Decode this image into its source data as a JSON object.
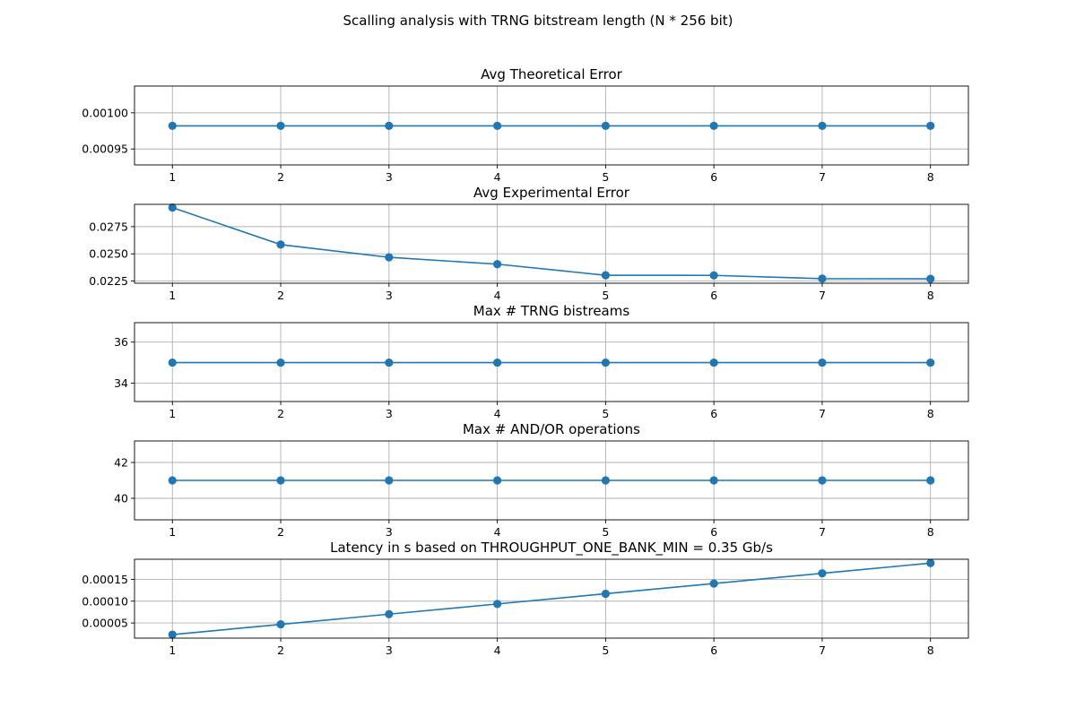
{
  "figure": {
    "title": "Scalling analysis with TRNG bitstream length (N * 256 bit)"
  },
  "style": {
    "series_color": "#1f77b4",
    "grid": true,
    "marker": "circle"
  },
  "chart_data": [
    {
      "type": "line",
      "title": "Avg Theoretical Error",
      "x": [
        1,
        2,
        3,
        4,
        5,
        6,
        7,
        8
      ],
      "values": [
        0.000982,
        0.000982,
        0.000982,
        0.000982,
        0.000982,
        0.000982,
        0.000982,
        0.000982
      ],
      "ylim": [
        0.000928,
        0.001037
      ],
      "yticks": [
        0.00095,
        0.001
      ],
      "ytick_labels": [
        "0.00095",
        "0.00100"
      ],
      "xticks": [
        1,
        2,
        3,
        4,
        5,
        6,
        7,
        8
      ],
      "xtick_labels": [
        "1",
        "2",
        "3",
        "4",
        "5",
        "6",
        "7",
        "8"
      ],
      "xlim": [
        0.65,
        8.35
      ],
      "grid": true
    },
    {
      "type": "line",
      "title": "Avg Experimental Error",
      "x": [
        1,
        2,
        3,
        4,
        5,
        6,
        7,
        8
      ],
      "values": [
        0.02925,
        0.02585,
        0.02468,
        0.02405,
        0.02303,
        0.02302,
        0.02272,
        0.0227
      ],
      "ylim": [
        0.0223,
        0.02955
      ],
      "yticks": [
        0.0225,
        0.025,
        0.0275
      ],
      "ytick_labels": [
        "0.0225",
        "0.0250",
        "0.0275"
      ],
      "xticks": [
        1,
        2,
        3,
        4,
        5,
        6,
        7,
        8
      ],
      "xtick_labels": [
        "1",
        "2",
        "3",
        "4",
        "5",
        "6",
        "7",
        "8"
      ],
      "xlim": [
        0.65,
        8.35
      ],
      "grid": true
    },
    {
      "type": "line",
      "title": "Max # TRNG bistreams",
      "x": [
        1,
        2,
        3,
        4,
        5,
        6,
        7,
        8
      ],
      "values": [
        35,
        35,
        35,
        35,
        35,
        35,
        35,
        35
      ],
      "ylim": [
        33.1,
        36.95
      ],
      "yticks": [
        34,
        36
      ],
      "ytick_labels": [
        "34",
        "36"
      ],
      "xticks": [
        1,
        2,
        3,
        4,
        5,
        6,
        7,
        8
      ],
      "xtick_labels": [
        "1",
        "2",
        "3",
        "4",
        "5",
        "6",
        "7",
        "8"
      ],
      "xlim": [
        0.65,
        8.35
      ],
      "grid": true
    },
    {
      "type": "line",
      "title": "Max # AND/OR operations",
      "x": [
        1,
        2,
        3,
        4,
        5,
        6,
        7,
        8
      ],
      "values": [
        41,
        41,
        41,
        41,
        41,
        41,
        41,
        41
      ],
      "ylim": [
        38.8,
        43.2
      ],
      "yticks": [
        40,
        42
      ],
      "ytick_labels": [
        "40",
        "42"
      ],
      "xticks": [
        1,
        2,
        3,
        4,
        5,
        6,
        7,
        8
      ],
      "xtick_labels": [
        "1",
        "2",
        "3",
        "4",
        "5",
        "6",
        "7",
        "8"
      ],
      "xlim": [
        0.65,
        8.35
      ],
      "grid": true
    },
    {
      "type": "line",
      "title": "Latency in s based on THROUGHPUT_ONE_BANK_MIN = 0.35 Gb/s",
      "x": [
        1,
        2,
        3,
        4,
        5,
        6,
        7,
        8
      ],
      "values": [
        2.34e-05,
        4.68e-05,
        7.02e-05,
        9.36e-05,
        0.000117,
        0.0001404,
        0.0001638,
        0.0001872
      ],
      "ylim": [
        1.53e-05,
        0.000196
      ],
      "yticks": [
        5e-05,
        0.0001,
        0.00015
      ],
      "ytick_labels": [
        "0.00005",
        "0.00010",
        "0.00015"
      ],
      "xticks": [
        1,
        2,
        3,
        4,
        5,
        6,
        7,
        8
      ],
      "xtick_labels": [
        "1",
        "2",
        "3",
        "4",
        "5",
        "6",
        "7",
        "8"
      ],
      "xlim": [
        0.65,
        8.35
      ],
      "grid": true
    }
  ]
}
